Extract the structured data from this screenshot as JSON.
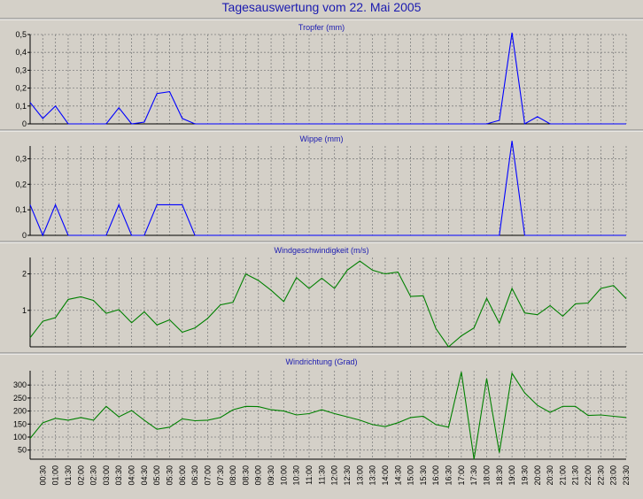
{
  "page": {
    "title": "Tagesauswertung vom 22. Mai 2005"
  },
  "chart_data": [
    {
      "type": "line",
      "title": "Tropfer (mm)",
      "series": [
        {
          "color": "#0000ff",
          "x_start": "00:00",
          "x_step_minutes": 30,
          "values": [
            0.12,
            0.03,
            0.1,
            0,
            0,
            0,
            0,
            0.09,
            0,
            0.01,
            0.17,
            0.18,
            0.03,
            0,
            0,
            0,
            0,
            0,
            0,
            0,
            0,
            0,
            0,
            0,
            0,
            0,
            0,
            0,
            0,
            0,
            0,
            0,
            0,
            0,
            0,
            0,
            0,
            0.02,
            0.51,
            0,
            0.04,
            0,
            0,
            0,
            0,
            0,
            0,
            0
          ]
        }
      ],
      "ylim": [
        0,
        0.5
      ],
      "yticks": [
        "0",
        "0,1",
        "0,2",
        "0,3",
        "0,4",
        "0,5"
      ],
      "grid": true
    },
    {
      "type": "line",
      "title": "Wippe (mm)",
      "series": [
        {
          "color": "#0000ff",
          "x_start": "00:00",
          "x_step_minutes": 30,
          "values": [
            0.12,
            0,
            0.12,
            0,
            0,
            0,
            0,
            0.12,
            0,
            0,
            0.12,
            0.12,
            0.12,
            0,
            0,
            0,
            0,
            0,
            0,
            0,
            0,
            0,
            0,
            0,
            0,
            0,
            0,
            0,
            0,
            0,
            0,
            0,
            0,
            0,
            0,
            0,
            0,
            0,
            0.37,
            0,
            0,
            0,
            0,
            0,
            0,
            0,
            0,
            0
          ]
        }
      ],
      "ylim": [
        0,
        0.35
      ],
      "yticks": [
        "0",
        "0,1",
        "0,2",
        "0,3"
      ],
      "grid": true
    },
    {
      "type": "line",
      "title": "Windgeschwindigkeit (m/s)",
      "series": [
        {
          "color": "#008000",
          "x_start": "00:00",
          "x_step_minutes": 30,
          "values": [
            0.25,
            0.7,
            0.8,
            1.3,
            1.37,
            1.27,
            0.92,
            1.02,
            0.66,
            0.96,
            0.6,
            0.74,
            0.4,
            0.52,
            0.78,
            1.15,
            1.22,
            2.0,
            1.82,
            1.55,
            1.24,
            1.9,
            1.6,
            1.88,
            1.6,
            2.1,
            2.35,
            2.1,
            2.0,
            2.05,
            1.38,
            1.4,
            0.5,
            0,
            0.3,
            0.52,
            1.33,
            0.65,
            1.6,
            0.93,
            0.88,
            1.13,
            0.84,
            1.18,
            1.2,
            1.6,
            1.68,
            1.32
          ]
        }
      ],
      "ylim": [
        0,
        2.45
      ],
      "yticks": [
        "1",
        "2"
      ],
      "grid": true
    },
    {
      "type": "line",
      "title": "Windrichtung (Grad)",
      "series": [
        {
          "color": "#008000",
          "x_start": "00:00",
          "x_step_minutes": 30,
          "values": [
            95,
            155,
            172,
            165,
            175,
            165,
            218,
            178,
            202,
            165,
            130,
            138,
            170,
            163,
            165,
            175,
            205,
            218,
            217,
            205,
            200,
            185,
            190,
            205,
            190,
            178,
            165,
            148,
            140,
            155,
            175,
            180,
            148,
            138,
            350,
            15,
            325,
            40,
            345,
            270,
            222,
            195,
            218,
            218,
            183,
            185,
            180,
            175
          ]
        }
      ],
      "ylim": [
        15,
        355
      ],
      "yticks": [
        "50",
        "100",
        "150",
        "200",
        "250",
        "300"
      ],
      "grid": true
    }
  ],
  "x_axis": {
    "ticks": [
      "00:30",
      "01:00",
      "01:30",
      "02:00",
      "02:30",
      "03:00",
      "03:30",
      "04:00",
      "04:30",
      "05:00",
      "05:30",
      "06:00",
      "06:30",
      "07:00",
      "07:30",
      "08:00",
      "08:30",
      "09:00",
      "09:30",
      "10:00",
      "10:30",
      "11:00",
      "11:30",
      "12:00",
      "12:30",
      "13:00",
      "13:30",
      "14:00",
      "14:30",
      "15:00",
      "15:30",
      "16:00",
      "16:30",
      "17:00",
      "17:30",
      "18:00",
      "18:30",
      "19:00",
      "19:30",
      "20:00",
      "20:30",
      "21:00",
      "21:30",
      "22:00",
      "22:30",
      "23:00",
      "23:30"
    ]
  }
}
